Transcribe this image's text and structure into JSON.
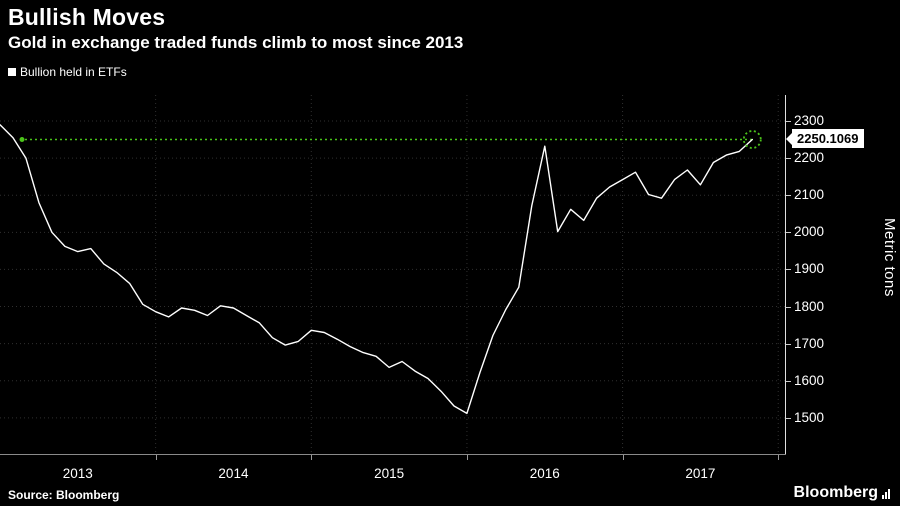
{
  "header": {
    "title": "Bullish Moves",
    "subtitle": "Gold in exchange traded funds climb to most since 2013"
  },
  "legend": {
    "label": "Bullion held in ETFs",
    "swatch_color": "#ffffff"
  },
  "chart_data": {
    "type": "line",
    "title": "Bullish Moves",
    "subtitle": "Gold in exchange traded funds climb to most since 2013",
    "ylabel": "Metric tons",
    "xlabel": "",
    "x_domain": [
      2013.0,
      2018.05
    ],
    "y_domain": [
      1400,
      2370
    ],
    "y_ticks": [
      2300,
      2200,
      2100,
      2000,
      1900,
      1800,
      1700,
      1600,
      1500
    ],
    "x_tick_labels": [
      "2013",
      "2014",
      "2015",
      "2016",
      "2017"
    ],
    "x_tick_years": [
      2013,
      2014,
      2015,
      2016,
      2017
    ],
    "x_gridlines": [
      2014,
      2015,
      2016,
      2017,
      2018
    ],
    "grid_on": true,
    "grid_color": "#2f2f2f",
    "background": "#000000",
    "series": [
      {
        "name": "Bullion held in ETFs",
        "color": "#ffffff",
        "x_start": 2013.0,
        "x_step": 0.0833333,
        "values": [
          2290,
          2255,
          2200,
          2080,
          2000,
          1962,
          1948,
          1956,
          1915,
          1892,
          1862,
          1806,
          1786,
          1772,
          1796,
          1790,
          1776,
          1802,
          1796,
          1776,
          1756,
          1716,
          1696,
          1706,
          1736,
          1730,
          1712,
          1692,
          1676,
          1666,
          1636,
          1652,
          1626,
          1606,
          1572,
          1532,
          1512,
          1622,
          1722,
          1792,
          1852,
          2072,
          2232,
          2002,
          2062,
          2032,
          2092,
          2122,
          2142,
          2162,
          2102,
          2092,
          2142,
          2168,
          2128,
          2188,
          2208,
          2218,
          2250.1069
        ]
      }
    ],
    "annotation": {
      "value": 2250.1069,
      "label": "2250.1069",
      "color": "#4bc31a"
    },
    "axis_colors": {
      "right_axis": "#e0e0e0",
      "bottom_axis": "#8a8a8a"
    },
    "legend_position": "top-left"
  },
  "footer": {
    "source": "Source: Bloomberg",
    "logo": "Bloomberg"
  }
}
